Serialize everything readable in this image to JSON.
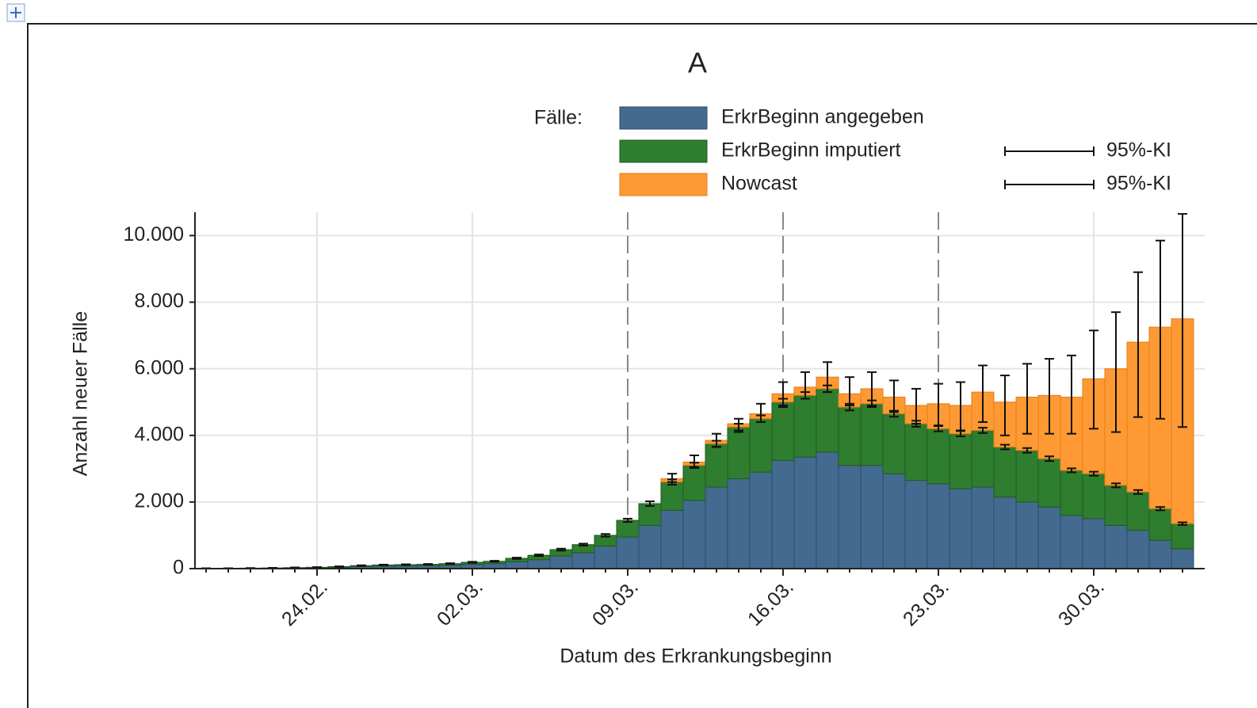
{
  "chart_data": {
    "type": "bar",
    "stacked": true,
    "title": "A",
    "x_label": "Datum des Erkrankungsbeginn",
    "y_label": "Anzahl neuer Fälle",
    "legend_title": "Fälle:",
    "categories": [
      null,
      null,
      null,
      null,
      null,
      "24.02.",
      null,
      null,
      null,
      null,
      null,
      null,
      "02.03.",
      null,
      null,
      null,
      null,
      null,
      null,
      "09.03.",
      null,
      null,
      null,
      null,
      null,
      null,
      "16.03.",
      null,
      null,
      null,
      null,
      null,
      null,
      "23.03.",
      null,
      null,
      null,
      null,
      null,
      null,
      "30.03.",
      null,
      null,
      null,
      null
    ],
    "series": [
      {
        "name": "ErkrBeginn angegeben",
        "color": "#436a8f",
        "edge": "#2c4c6b",
        "values": [
          6,
          6,
          8,
          12,
          18,
          25,
          40,
          60,
          75,
          80,
          90,
          100,
          130,
          150,
          210,
          270,
          380,
          480,
          680,
          950,
          1300,
          1750,
          2050,
          2450,
          2700,
          2900,
          3250,
          3350,
          3500,
          3100,
          3100,
          2850,
          2650,
          2550,
          2400,
          2450,
          2150,
          2000,
          1850,
          1600,
          1500,
          1300,
          1150,
          850,
          600
        ]
      },
      {
        "name": "ErkrBeginn imputiert",
        "color": "#2f7d2f",
        "edge": "#1f5a1f",
        "values": [
          4,
          4,
          7,
          8,
          12,
          15,
          20,
          30,
          35,
          40,
          40,
          50,
          60,
          70,
          100,
          130,
          190,
          240,
          320,
          500,
          650,
          850,
          1050,
          1300,
          1550,
          1600,
          1750,
          1850,
          1900,
          1750,
          1850,
          1800,
          1700,
          1650,
          1650,
          1700,
          1500,
          1550,
          1450,
          1350,
          1350,
          1200,
          1150,
          950,
          750
        ]
      },
      {
        "name": "Nowcast",
        "color": "#ff9933",
        "edge": "#e07e1a",
        "values": [
          0,
          0,
          0,
          0,
          0,
          0,
          0,
          0,
          0,
          0,
          0,
          0,
          0,
          0,
          0,
          0,
          0,
          0,
          0,
          0,
          0,
          100,
          100,
          100,
          100,
          150,
          250,
          250,
          350,
          400,
          450,
          500,
          550,
          750,
          850,
          1150,
          1350,
          1600,
          1900,
          2200,
          2850,
          3500,
          4500,
          5450,
          6150
        ]
      }
    ],
    "error_bars": [
      {
        "name": "95%-KI",
        "lower": [
          8,
          8,
          12,
          16,
          25,
          35,
          52,
          80,
          100,
          110,
          120,
          138,
          175,
          205,
          290,
          375,
          540,
          690,
          960,
          1400,
          1880,
          2520,
          3020,
          3660,
          4150,
          4400,
          4900,
          5100,
          5300,
          4750,
          4850,
          4560,
          4260,
          4120,
          3970,
          4070,
          3580,
          3480,
          3230,
          2890,
          2790,
          2440,
          2240,
          1750,
          1310
        ],
        "upper": [
          12,
          12,
          18,
          24,
          35,
          45,
          68,
          100,
          120,
          130,
          140,
          162,
          205,
          235,
          330,
          425,
          600,
          750,
          1040,
          1500,
          2020,
          2680,
          3180,
          3840,
          4350,
          4600,
          5100,
          5300,
          5500,
          4950,
          5050,
          4740,
          4440,
          4280,
          4130,
          4230,
          3720,
          3620,
          3370,
          3010,
          2910,
          2560,
          2360,
          1850,
          1390
        ]
      },
      {
        "name": "95%-KI",
        "lower": [
          null,
          null,
          null,
          null,
          null,
          null,
          null,
          null,
          null,
          null,
          null,
          null,
          null,
          null,
          null,
          null,
          null,
          null,
          null,
          null,
          null,
          2600,
          3050,
          3650,
          4100,
          4400,
          4850,
          5100,
          5300,
          4900,
          4900,
          4700,
          4350,
          4300,
          4150,
          4400,
          4000,
          4050,
          4050,
          4050,
          4200,
          4100,
          4550,
          4500,
          4250
        ],
        "upper": [
          null,
          null,
          null,
          null,
          null,
          null,
          null,
          null,
          null,
          null,
          null,
          null,
          null,
          null,
          null,
          null,
          null,
          null,
          null,
          null,
          null,
          2850,
          3400,
          4050,
          4500,
          4950,
          5600,
          5900,
          6200,
          5750,
          5900,
          5650,
          5400,
          5550,
          5600,
          6100,
          5800,
          6150,
          6300,
          6400,
          7150,
          7700,
          8900,
          9850,
          10650
        ]
      }
    ],
    "ylim": [
      0,
      10700
    ],
    "yticks": [
      0,
      {
        "value": 2000,
        "label": "2.000"
      },
      {
        "value": 4000,
        "label": "4.000"
      },
      {
        "value": 6000,
        "label": "6.000"
      },
      {
        "value": 8000,
        "label": "8.000"
      },
      {
        "value": 10000,
        "label": "10.000"
      }
    ],
    "grid": true,
    "dashed_categories": [
      "09.03.",
      "16.03.",
      "23.03."
    ]
  }
}
